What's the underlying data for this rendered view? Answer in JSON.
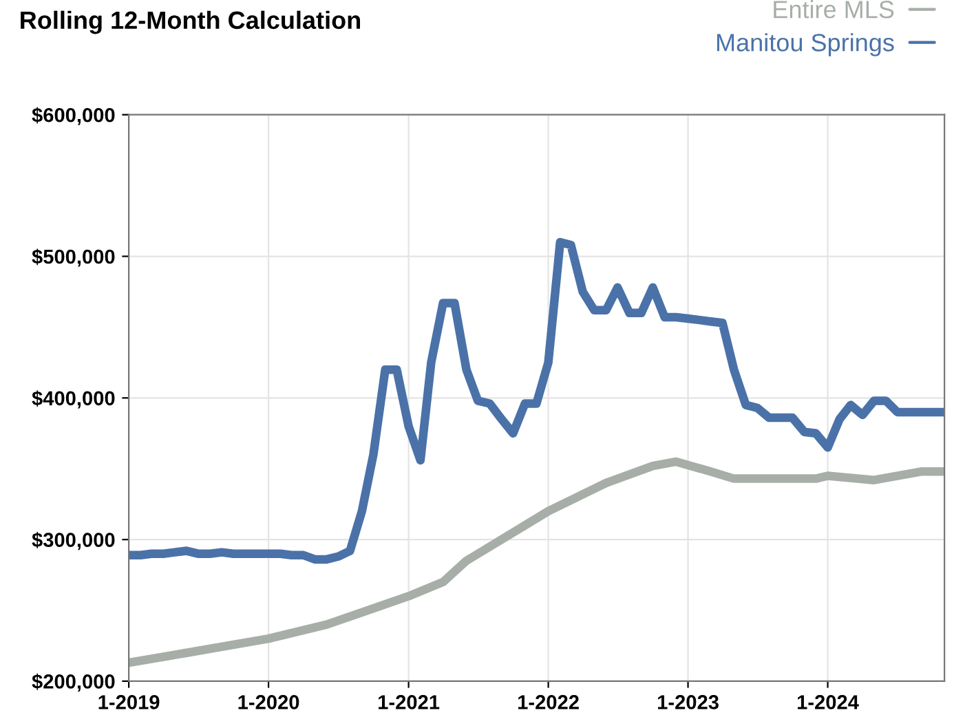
{
  "chart_data": {
    "type": "line",
    "title": "Rolling 12-Month Calculation",
    "x": [
      "2019-01",
      "2019-02",
      "2019-03",
      "2019-04",
      "2019-05",
      "2019-06",
      "2019-07",
      "2019-08",
      "2019-09",
      "2019-10",
      "2019-11",
      "2019-12",
      "2020-01",
      "2020-02",
      "2020-03",
      "2020-04",
      "2020-05",
      "2020-06",
      "2020-07",
      "2020-08",
      "2020-09",
      "2020-10",
      "2020-11",
      "2020-12",
      "2021-01",
      "2021-02",
      "2021-03",
      "2021-04",
      "2021-05",
      "2021-06",
      "2021-07",
      "2021-08",
      "2021-09",
      "2021-10",
      "2021-11",
      "2021-12",
      "2022-01",
      "2022-02",
      "2022-03",
      "2022-04",
      "2022-05",
      "2022-06",
      "2022-07",
      "2022-08",
      "2022-09",
      "2022-10",
      "2022-11",
      "2022-12",
      "2023-01",
      "2023-02",
      "2023-03",
      "2023-04",
      "2023-05",
      "2023-06",
      "2023-07",
      "2023-08",
      "2023-09",
      "2023-10",
      "2023-11",
      "2023-12",
      "2024-01",
      "2024-02",
      "2024-03",
      "2024-04",
      "2024-05",
      "2024-06",
      "2024-07",
      "2024-08",
      "2024-09",
      "2024-10",
      "2024-11"
    ],
    "series": [
      {
        "name": "Entire MLS",
        "color": "#a7aea7",
        "x": [
          "2019-01",
          "2019-06",
          "2020-01",
          "2020-06",
          "2021-01",
          "2021-04",
          "2021-06",
          "2022-01",
          "2022-06",
          "2022-10",
          "2022-12",
          "2023-03",
          "2023-05",
          "2023-12",
          "2024-01",
          "2024-05",
          "2024-09",
          "2024-11"
        ],
        "values": [
          213000,
          220000,
          230000,
          240000,
          260000,
          270000,
          285000,
          320000,
          340000,
          352000,
          355000,
          348000,
          343000,
          343000,
          345000,
          342000,
          348000,
          348000
        ]
      },
      {
        "name": "Manitou Springs",
        "color": "#4a72a8",
        "values": [
          289000,
          289000,
          290000,
          290000,
          291000,
          292000,
          290000,
          290000,
          291000,
          290000,
          290000,
          290000,
          290000,
          290000,
          289000,
          289000,
          286000,
          286000,
          288000,
          292000,
          320000,
          360000,
          420000,
          420000,
          380000,
          356000,
          425000,
          467000,
          467000,
          420000,
          398000,
          396000,
          385000,
          375000,
          396000,
          396000,
          425000,
          510000,
          508000,
          475000,
          462000,
          462000,
          478000,
          460000,
          460000,
          478000,
          457000,
          457000,
          456000,
          455000,
          454000,
          453000,
          420000,
          395000,
          393000,
          386000,
          386000,
          386000,
          376000,
          375000,
          365000,
          385000,
          395000,
          388000,
          398000,
          398000,
          390000,
          390000,
          390000,
          390000,
          390000
        ]
      }
    ],
    "xlim": [
      "2019-01",
      "2024-11"
    ],
    "xticks": [
      {
        "value": "2019-01",
        "label": "1-2019"
      },
      {
        "value": "2020-01",
        "label": "1-2020"
      },
      {
        "value": "2021-01",
        "label": "1-2021"
      },
      {
        "value": "2022-01",
        "label": "1-2022"
      },
      {
        "value": "2023-01",
        "label": "1-2023"
      },
      {
        "value": "2024-01",
        "label": "1-2024"
      }
    ],
    "ylim": [
      200000,
      600000
    ],
    "yticks": [
      {
        "value": 200000,
        "label": "$200,000"
      },
      {
        "value": 300000,
        "label": "$300,000"
      },
      {
        "value": 400000,
        "label": "$400,000"
      },
      {
        "value": 500000,
        "label": "$500,000"
      },
      {
        "value": 600000,
        "label": "$600,000"
      }
    ],
    "grid": true,
    "legend": "top right",
    "line_style": "solid",
    "marker": "none"
  }
}
